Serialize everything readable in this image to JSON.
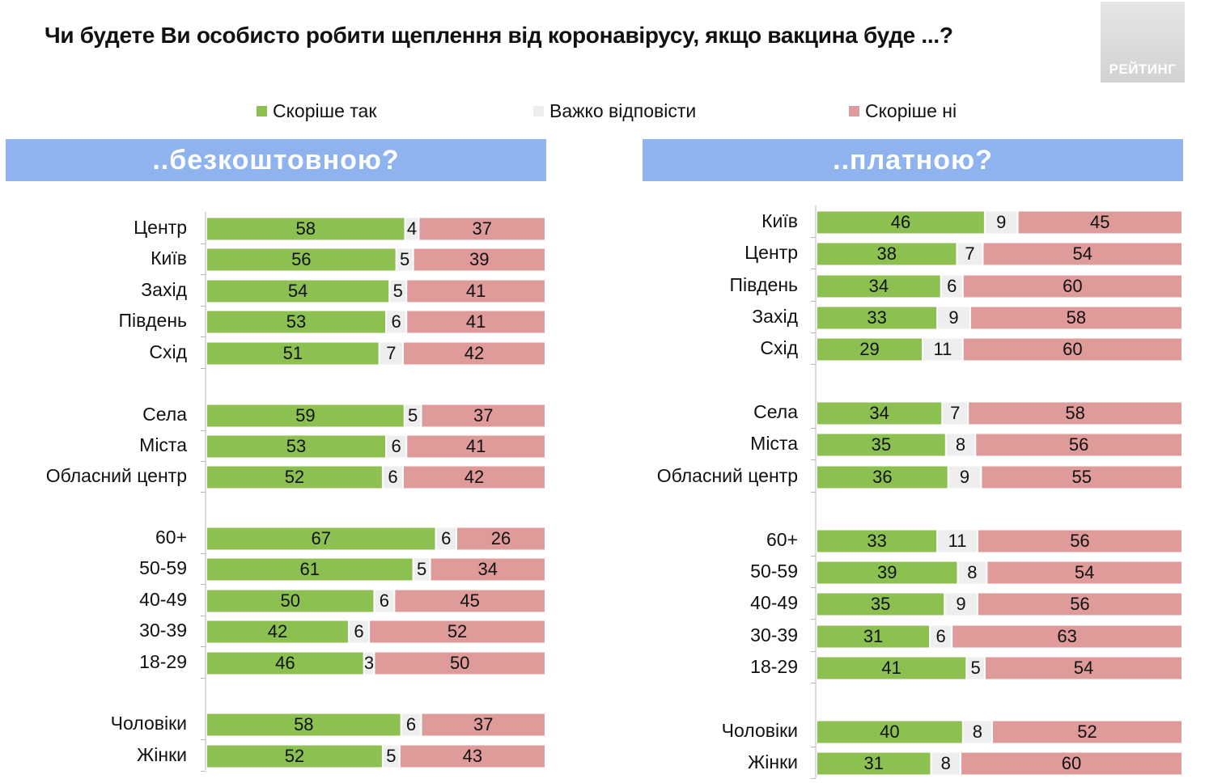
{
  "title": "Чи будете Ви особисто робити щеплення від коронавірусу, якщо вакцина буде ...?",
  "logo_text": "РЕЙТИНГ",
  "legend": [
    {
      "label": "Скоріше так",
      "color": "#8cc152"
    },
    {
      "label": "Важко відповісти",
      "color": "#eeeeee"
    },
    {
      "label": "Скоріше ні",
      "color": "#df9a9a"
    }
  ],
  "colors": {
    "yes": "#8cc152",
    "hard": "#eeeeee",
    "no": "#df9a9a",
    "banner": "#8fb3ef"
  },
  "chart_data": [
    {
      "type": "bar",
      "stacked": true,
      "orientation": "horizontal",
      "title": "..безкоштовною?",
      "categories": [
        "Центр",
        "Київ",
        "Захід",
        "Південь",
        "Схід",
        "Села",
        "Міста",
        "Обласний центр",
        "60+",
        "50-59",
        "40-49",
        "30-39",
        "18-29",
        "Чоловіки",
        "Жінки"
      ],
      "groups": [
        [
          0,
          4
        ],
        [
          5,
          7
        ],
        [
          8,
          12
        ],
        [
          13,
          14
        ]
      ],
      "series": [
        {
          "name": "Скоріше так",
          "values": [
            58,
            56,
            54,
            53,
            51,
            59,
            53,
            52,
            67,
            61,
            50,
            42,
            46,
            58,
            52
          ]
        },
        {
          "name": "Важко відповісти",
          "values": [
            4,
            5,
            5,
            6,
            7,
            5,
            6,
            6,
            6,
            5,
            6,
            6,
            3,
            6,
            5
          ]
        },
        {
          "name": "Скоріше ні",
          "values": [
            37,
            39,
            41,
            41,
            42,
            37,
            41,
            42,
            26,
            34,
            45,
            52,
            50,
            37,
            43
          ]
        }
      ]
    },
    {
      "type": "bar",
      "stacked": true,
      "orientation": "horizontal",
      "title": "..платною?",
      "categories": [
        "Київ",
        "Центр",
        "Південь",
        "Захід",
        "Схід",
        "Села",
        "Міста",
        "Обласний центр",
        "60+",
        "50-59",
        "40-49",
        "30-39",
        "18-29",
        "Чоловіки",
        "Жінки"
      ],
      "groups": [
        [
          0,
          4
        ],
        [
          5,
          7
        ],
        [
          8,
          12
        ],
        [
          13,
          14
        ]
      ],
      "series": [
        {
          "name": "Скоріше так",
          "values": [
            46,
            38,
            34,
            33,
            29,
            34,
            35,
            36,
            33,
            39,
            35,
            31,
            41,
            40,
            31
          ]
        },
        {
          "name": "Важко відповісти",
          "values": [
            9,
            7,
            6,
            9,
            11,
            7,
            8,
            9,
            11,
            8,
            9,
            6,
            5,
            8,
            8
          ]
        },
        {
          "name": "Скоріше ні",
          "values": [
            45,
            54,
            60,
            58,
            60,
            58,
            56,
            55,
            56,
            54,
            56,
            63,
            54,
            52,
            60
          ]
        }
      ]
    }
  ]
}
